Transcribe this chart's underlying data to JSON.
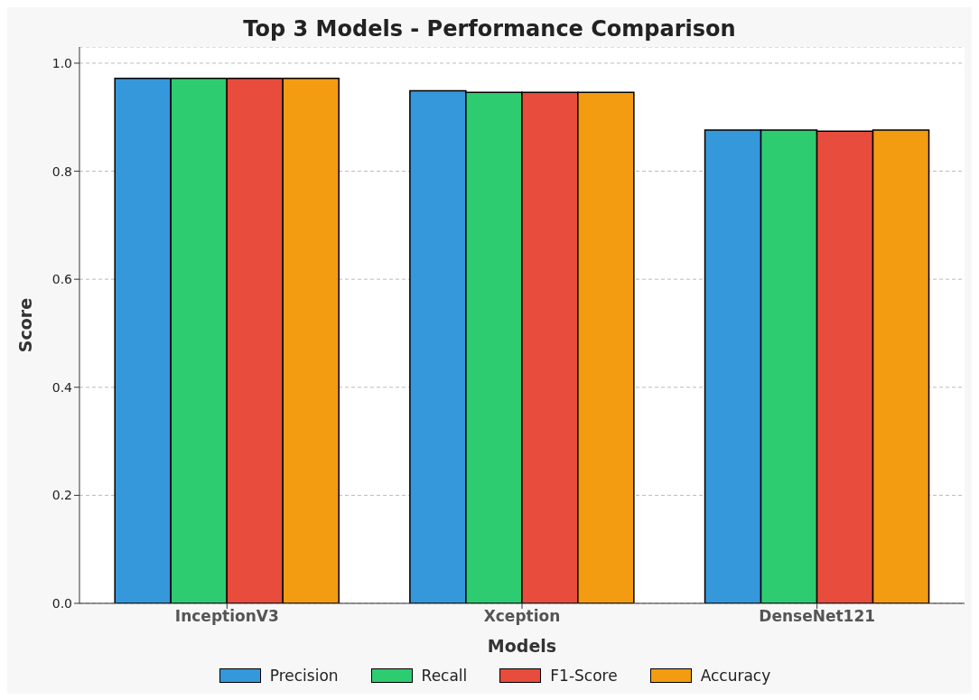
{
  "chart_data": {
    "type": "bar",
    "title": "Top 3 Models - Performance Comparison",
    "xlabel": "Models",
    "ylabel": "Score",
    "categories": [
      "InceptionV3",
      "Xception",
      "DenseNet121"
    ],
    "series": [
      {
        "name": "Precision",
        "color": "#3498db",
        "values": [
          0.972,
          0.949,
          0.876
        ]
      },
      {
        "name": "Recall",
        "color": "#2ecc71",
        "values": [
          0.972,
          0.946,
          0.876
        ]
      },
      {
        "name": "F1-Score",
        "color": "#e74c3c",
        "values": [
          0.972,
          0.946,
          0.874
        ]
      },
      {
        "name": "Accuracy",
        "color": "#f39c12",
        "values": [
          0.972,
          0.946,
          0.876
        ]
      }
    ],
    "ylim": [
      0,
      1.03
    ],
    "yticks": [
      {
        "value": 0,
        "label": "0.0"
      },
      {
        "value": 0.2,
        "label": "0.2"
      },
      {
        "value": 0.4,
        "label": "0.4"
      },
      {
        "value": 0.6,
        "label": "0.6"
      },
      {
        "value": 0.8,
        "label": "0.8"
      },
      {
        "value": 1,
        "label": "1.0"
      }
    ],
    "grid": "y",
    "legend": "bottom"
  }
}
